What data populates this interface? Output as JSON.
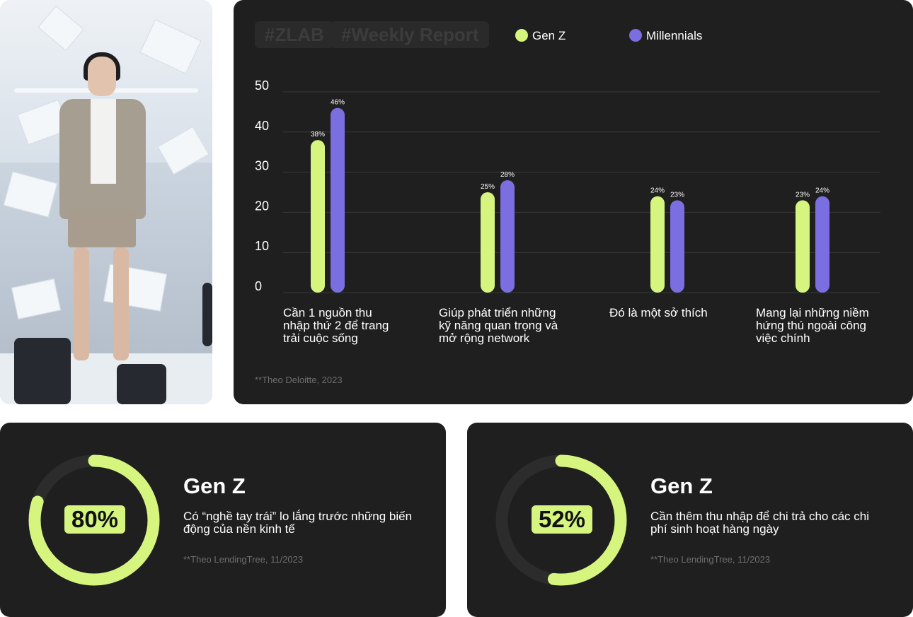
{
  "header": {
    "tags": [
      "#ZLAB",
      "#Weekly Report"
    ]
  },
  "colors": {
    "genz": "#d6f57f",
    "millennials": "#7b6ee0",
    "card_bg": "#1f1f1f",
    "track": "#2c2c2c"
  },
  "chart_data": {
    "type": "bar",
    "categories": [
      [
        "Cần 1 nguồn thu",
        "nhập thứ 2 để trang",
        "trải cuộc sống"
      ],
      [
        "Giúp phát triển những",
        "kỹ năng quan trọng và",
        "mở rộng network"
      ],
      [
        "Đó là một sở thích"
      ],
      [
        "Mang lại những niềm",
        "hứng thú ngoài công",
        "việc chính"
      ]
    ],
    "series": [
      {
        "name": "Gen Z",
        "values": [
          38,
          25,
          24,
          23
        ],
        "labels": [
          "38%",
          "25%",
          "24%",
          "23%"
        ]
      },
      {
        "name": "Millennials",
        "values": [
          46,
          28,
          23,
          24
        ],
        "labels": [
          "46%",
          "28%",
          "23%",
          "24%"
        ]
      }
    ],
    "yticks": [
      "50",
      "40",
      "30",
      "20",
      "10",
      "0"
    ],
    "ylim": [
      0,
      50
    ],
    "grid": true,
    "legend": "top",
    "source": "**Theo Deloitte, 2023"
  },
  "stats": [
    {
      "value_label": "80%",
      "fraction": 0.8,
      "title": "Gen Z",
      "desc": "Có “nghề tay trái” lo lắng trước những biến động của nền kinh tế",
      "source": "**Theo LendingTree, 11/2023"
    },
    {
      "value_label": "52%",
      "fraction": 0.52,
      "title": "Gen Z",
      "desc": "Cần thêm thu nhập để chi trả cho các chi phí sinh hoạt hàng ngày",
      "source": "**Theo LendingTree, 11/2023"
    }
  ]
}
